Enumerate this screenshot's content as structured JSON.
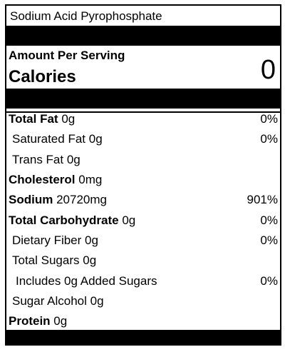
{
  "product_name": "Sodium Acid Pyrophosphate",
  "amount_per_serving": "Amount Per Serving",
  "calories_label": "Calories",
  "calories_value": "0",
  "nutrients": [
    {
      "name": "Total Fat",
      "amount": "0g",
      "dv": "0%",
      "bold": true,
      "indent": 0
    },
    {
      "name": "Saturated Fat",
      "amount": "0g",
      "dv": "0%",
      "bold": false,
      "indent": 1
    },
    {
      "name": "Trans Fat",
      "amount": "0g",
      "dv": "",
      "bold": false,
      "indent": 1
    },
    {
      "name": "Cholesterol",
      "amount": "0mg",
      "dv": "",
      "bold": true,
      "indent": 0
    },
    {
      "name": "Sodium",
      "amount": "20720mg",
      "dv": "901%",
      "bold": true,
      "indent": 0
    },
    {
      "name": "Total Carbohydrate",
      "amount": "0g",
      "dv": "0%",
      "bold": true,
      "indent": 0
    },
    {
      "name": "Dietary Fiber",
      "amount": "0g",
      "dv": "0%",
      "bold": false,
      "indent": 1
    },
    {
      "name": "Total Sugars",
      "amount": "0g",
      "dv": "",
      "bold": false,
      "indent": 1
    },
    {
      "name": "Includes 0g Added Sugars",
      "amount": "",
      "dv": "0%",
      "bold": false,
      "indent": 2
    },
    {
      "name": "Sugar Alcohol",
      "amount": "0g",
      "dv": "",
      "bold": false,
      "indent": 1
    },
    {
      "name": "Protein",
      "amount": "0g",
      "dv": "",
      "bold": true,
      "indent": 0
    }
  ]
}
